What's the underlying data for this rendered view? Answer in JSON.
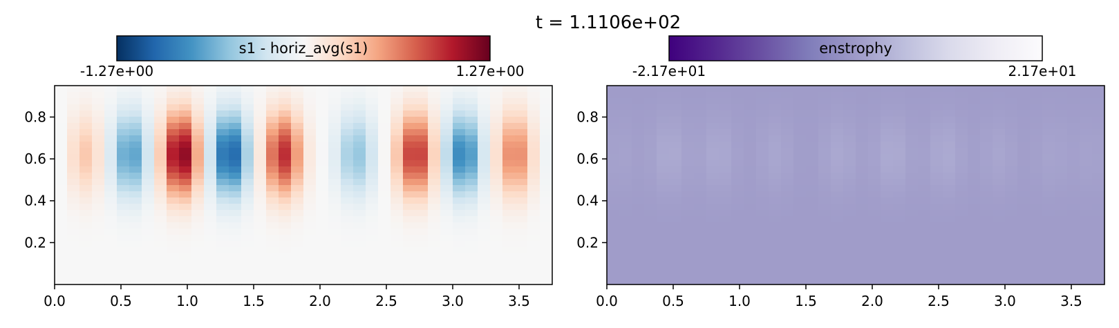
{
  "figure": {
    "suptitle": "t = 1.1106e+02"
  },
  "chart_data": [
    {
      "type": "heatmap",
      "colorbar": {
        "label": "s1 - horiz_avg(s1)",
        "min": -1.27,
        "max": 1.27,
        "min_label": "-1.27e+00",
        "max_label": "1.27e+00",
        "colormap": "RdBu_r",
        "stops": [
          "#053061",
          "#2166ac",
          "#4393c3",
          "#92c5de",
          "#d1e5f0",
          "#f7f7f7",
          "#fddbc7",
          "#f4a582",
          "#d6604d",
          "#b2182b",
          "#67001f"
        ]
      },
      "xlim": [
        0,
        3.75
      ],
      "ylim": [
        0,
        0.95
      ],
      "xticks": [
        0.0,
        0.5,
        1.0,
        1.5,
        2.0,
        2.5,
        3.0,
        3.5
      ],
      "xtick_labels": [
        "0.0",
        "0.5",
        "1.0",
        "1.5",
        "2.0",
        "2.5",
        "3.0",
        "3.5"
      ],
      "yticks": [
        0.2,
        0.4,
        0.6,
        0.8
      ],
      "ytick_labels": [
        "0.2",
        "0.4",
        "0.6",
        "0.8"
      ],
      "grid": {
        "nx": 40,
        "ny": 32
      },
      "structures": [
        {
          "x": 0.0,
          "amp": -0.08
        },
        {
          "x": 0.23,
          "amp": 0.35
        },
        {
          "x": 0.57,
          "amp": -0.72
        },
        {
          "x": 0.95,
          "amp": 1.2
        },
        {
          "x": 1.32,
          "amp": -1.05
        },
        {
          "x": 1.72,
          "amp": 0.95
        },
        {
          "x": 2.27,
          "amp": -0.5
        },
        {
          "x": 2.72,
          "amp": 0.95
        },
        {
          "x": 3.08,
          "amp": -0.85
        },
        {
          "x": 3.47,
          "amp": 0.65
        },
        {
          "x": 3.75,
          "amp": -0.1
        }
      ],
      "structure_center_y": 0.62,
      "structure_half_width_x": 0.1,
      "structure_half_height_y": 0.14
    },
    {
      "type": "heatmap",
      "colorbar": {
        "label": "enstrophy",
        "min": -21.7,
        "max": 21.7,
        "min_label": "-2.17e+01",
        "max_label": "2.17e+01",
        "colormap": "Purples_r",
        "stops": [
          "#3f007d",
          "#54278f",
          "#6a51a3",
          "#807dba",
          "#9e9ac8",
          "#bcbddc",
          "#dadaeb",
          "#efedf5",
          "#fcfbfd"
        ]
      },
      "xlim": [
        0,
        3.75
      ],
      "ylim": [
        0,
        0.95
      ],
      "xticks": [
        0.0,
        0.5,
        1.0,
        1.5,
        2.0,
        2.5,
        3.0,
        3.5
      ],
      "xtick_labels": [
        "0.0",
        "0.5",
        "1.0",
        "1.5",
        "2.0",
        "2.5",
        "3.0",
        "3.5"
      ],
      "yticks": [
        0.2,
        0.4,
        0.6,
        0.8
      ],
      "ytick_labels": [
        "0.2",
        "0.4",
        "0.6",
        "0.8"
      ],
      "grid": {
        "nx": 40,
        "ny": 32
      },
      "background_value": 0.3,
      "structures": [
        {
          "x": 0.1,
          "amp": 1.0
        },
        {
          "x": 0.47,
          "amp": 2.2
        },
        {
          "x": 0.84,
          "amp": 2.0
        },
        {
          "x": 1.27,
          "amp": 1.6
        },
        {
          "x": 1.75,
          "amp": 1.9
        },
        {
          "x": 2.15,
          "amp": 2.3
        },
        {
          "x": 2.55,
          "amp": 2.2
        },
        {
          "x": 2.95,
          "amp": 1.5
        },
        {
          "x": 3.35,
          "amp": 1.2
        },
        {
          "x": 3.65,
          "amp": 1.0
        }
      ],
      "structure_center_y": 0.62,
      "structure_half_width_x": 0.1,
      "structure_half_height_y": 0.13
    }
  ]
}
